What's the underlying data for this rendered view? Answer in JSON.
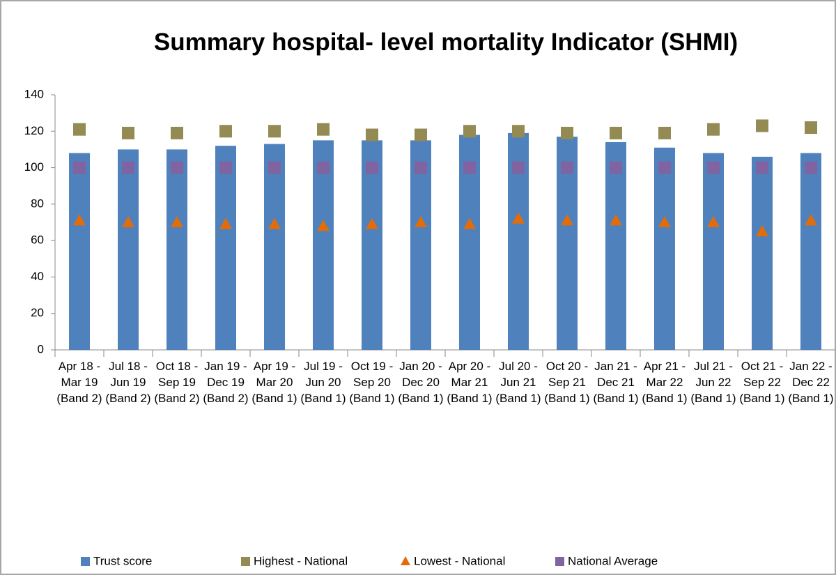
{
  "chart_data": {
    "type": "bar",
    "title": "Summary hospital- level mortality Indicator (SHMI)",
    "categories": [
      "Apr 18 - Mar 19 (Band 2)",
      "Jul 18 - Jun 19 (Band 2)",
      "Oct 18 - Sep 19 (Band 2)",
      "Jan 19 - Dec 19 (Band 2)",
      "Apr 19 - Mar 20 (Band 1)",
      "Jul 19 - Jun 20 (Band 1)",
      "Oct 19 - Sep 20 (Band 1)",
      "Jan 20 - Dec 20 (Band 1)",
      "Apr 20 - Mar 21 (Band 1)",
      "Jul 20 - Jun 21 (Band 1)",
      "Oct 20 - Sep 21 (Band 1)",
      "Jan 21 - Dec 21 (Band 1)",
      "Apr 21 - Mar 22 (Band 1)",
      "Jul 21 - Jun 22 (Band 1)",
      "Oct 21 - Sep 22 (Band 1)",
      "Jan 22 - Dec 22 (Band 1)"
    ],
    "series": [
      {
        "name": "Trust score",
        "color": "#4f81bd",
        "marker": "bar",
        "values": [
          108,
          110,
          110,
          112,
          113,
          115,
          115,
          115,
          118,
          119,
          117,
          114,
          111,
          108,
          106,
          108
        ]
      },
      {
        "name": "Highest - National",
        "color": "#948a54",
        "marker": "square",
        "values": [
          121,
          119,
          119,
          120,
          120,
          121,
          118,
          118,
          120,
          120,
          119,
          119,
          119,
          121,
          123,
          122
        ]
      },
      {
        "name": "Lowest - National",
        "color": "#e36c09",
        "marker": "triangle",
        "values": [
          71,
          70,
          70,
          69,
          69,
          68,
          69,
          70,
          69,
          72,
          71,
          71,
          70,
          70,
          65,
          71
        ]
      },
      {
        "name": "National Average",
        "color": "#8064a2",
        "marker": "square",
        "values": [
          100,
          100,
          100,
          100,
          100,
          100,
          100,
          100,
          100,
          100,
          100,
          100,
          100,
          100,
          100,
          100
        ]
      }
    ],
    "ylim": [
      0,
      140
    ],
    "yticks": [
      0,
      20,
      40,
      60,
      80,
      100,
      120,
      140
    ],
    "grid": false,
    "legend": "bottom"
  }
}
